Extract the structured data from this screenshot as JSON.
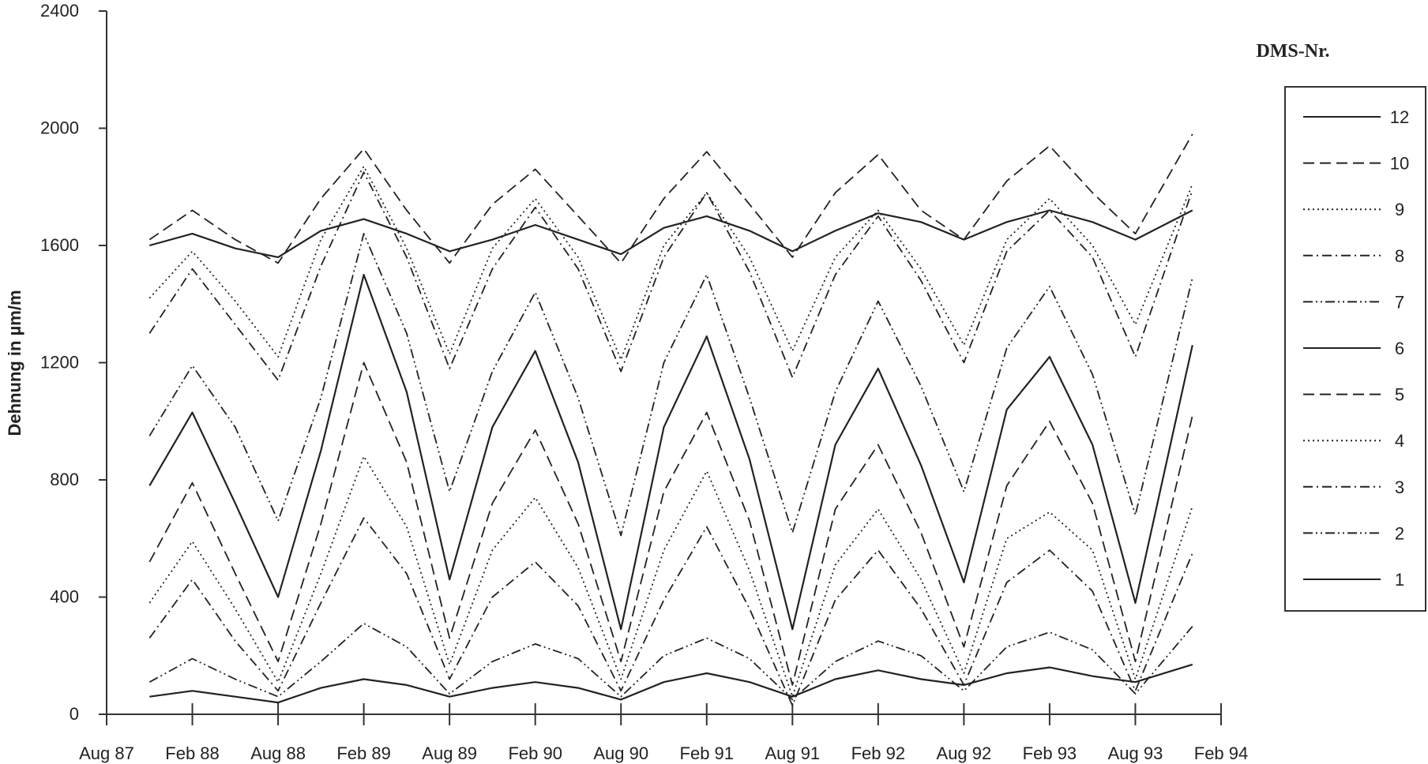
{
  "chart_data": {
    "type": "line",
    "ylabel": "Dehnung in µm/m",
    "xlabel": "",
    "ylim": [
      0,
      2400
    ],
    "y_ticks": [
      "0",
      "400",
      "800",
      "1200",
      "1600",
      "2000",
      "2400"
    ],
    "x_ticks": [
      "Aug 87",
      "Feb 88",
      "Aug 88",
      "Feb 89",
      "Aug 89",
      "Feb 90",
      "Aug 90",
      "Feb 91",
      "Aug 91",
      "Feb 92",
      "Aug 92",
      "Feb 93",
      "Aug 93",
      "Feb 94"
    ],
    "x_range": [
      "Aug 87",
      "Feb 94"
    ],
    "legend_title": "DMS-Nr.",
    "legend_position": "right",
    "x": [
      "Nov 87",
      "Feb 88",
      "May 88",
      "Aug 88",
      "Nov 88",
      "Feb 89",
      "May 89",
      "Aug 89",
      "Nov 89",
      "Feb 90",
      "May 90",
      "Aug 90",
      "Nov 90",
      "Feb 91",
      "May 91",
      "Aug 91",
      "Nov 91",
      "Feb 92",
      "May 92",
      "Aug 92",
      "Nov 92",
      "Feb 93",
      "May 93",
      "Aug 93",
      "Dec 93"
    ],
    "series": [
      {
        "name": "12",
        "dash": "solid",
        "values": [
          1600,
          1640,
          1590,
          1560,
          1650,
          1690,
          1640,
          1580,
          1620,
          1670,
          1620,
          1570,
          1660,
          1700,
          1650,
          1580,
          1650,
          1710,
          1680,
          1620,
          1680,
          1720,
          1680,
          1620,
          1720
        ]
      },
      {
        "name": "10",
        "dash": "long",
        "values": [
          1620,
          1720,
          1620,
          1540,
          1760,
          1930,
          1720,
          1540,
          1740,
          1860,
          1700,
          1540,
          1760,
          1920,
          1740,
          1560,
          1780,
          1910,
          1720,
          1620,
          1820,
          1940,
          1780,
          1640,
          1980
        ]
      },
      {
        "name": "9",
        "dash": "dot",
        "values": [
          1420,
          1580,
          1410,
          1220,
          1620,
          1870,
          1590,
          1230,
          1590,
          1760,
          1560,
          1210,
          1600,
          1780,
          1560,
          1240,
          1560,
          1720,
          1520,
          1260,
          1620,
          1760,
          1600,
          1330,
          1810
        ]
      },
      {
        "name": "8",
        "dash": "dashdot",
        "values": [
          1300,
          1520,
          1330,
          1140,
          1530,
          1850,
          1560,
          1180,
          1520,
          1730,
          1520,
          1170,
          1560,
          1780,
          1510,
          1150,
          1500,
          1700,
          1480,
          1200,
          1580,
          1720,
          1560,
          1220,
          1790
        ]
      },
      {
        "name": "7",
        "dash": "dashdotdot",
        "values": [
          950,
          1190,
          980,
          660,
          1080,
          1640,
          1300,
          760,
          1170,
          1440,
          1080,
          610,
          1200,
          1500,
          1080,
          620,
          1100,
          1410,
          1120,
          760,
          1250,
          1460,
          1160,
          680,
          1490
        ]
      },
      {
        "name": "6",
        "dash": "solid",
        "values": [
          780,
          1030,
          720,
          400,
          900,
          1500,
          1100,
          460,
          980,
          1240,
          860,
          290,
          980,
          1290,
          870,
          290,
          920,
          1180,
          850,
          450,
          1040,
          1220,
          920,
          380,
          1260
        ]
      },
      {
        "name": "5",
        "dash": "long",
        "values": [
          520,
          790,
          480,
          180,
          650,
          1200,
          860,
          260,
          720,
          970,
          650,
          180,
          760,
          1030,
          660,
          100,
          700,
          920,
          620,
          230,
          780,
          1000,
          720,
          180,
          1020
        ]
      },
      {
        "name": "4",
        "dash": "dot",
        "values": [
          380,
          590,
          360,
          110,
          480,
          880,
          640,
          170,
          560,
          740,
          500,
          120,
          560,
          830,
          490,
          60,
          510,
          700,
          460,
          140,
          600,
          690,
          560,
          120,
          710
        ]
      },
      {
        "name": "3",
        "dash": "dashdot",
        "values": [
          260,
          460,
          250,
          80,
          380,
          670,
          480,
          120,
          400,
          520,
          370,
          80,
          390,
          640,
          360,
          30,
          390,
          560,
          360,
          100,
          450,
          560,
          420,
          80,
          550
        ]
      },
      {
        "name": "2",
        "dash": "dashdotdot",
        "values": [
          110,
          190,
          120,
          60,
          180,
          310,
          230,
          70,
          180,
          240,
          190,
          60,
          200,
          260,
          190,
          50,
          180,
          250,
          200,
          80,
          230,
          280,
          220,
          70,
          300
        ]
      },
      {
        "name": "1",
        "dash": "solid",
        "values": [
          60,
          80,
          60,
          40,
          90,
          120,
          100,
          60,
          90,
          110,
          90,
          50,
          110,
          140,
          110,
          60,
          120,
          150,
          120,
          100,
          140,
          160,
          130,
          110,
          170
        ]
      }
    ]
  }
}
